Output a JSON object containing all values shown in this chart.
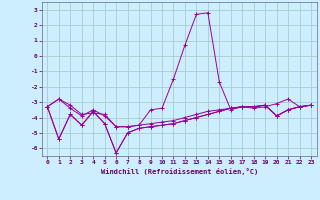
{
  "xlabel": "Windchill (Refroidissement éolien,°C)",
  "background_color": "#cceeff",
  "grid_color": "#aacccc",
  "line_color": "#990099",
  "xlim_min": -0.5,
  "xlim_max": 23.5,
  "ylim_min": -6.5,
  "ylim_max": 3.5,
  "yticks": [
    -6,
    -5,
    -4,
    -3,
    -2,
    -1,
    0,
    1,
    2,
    3
  ],
  "xticks": [
    0,
    1,
    2,
    3,
    4,
    5,
    6,
    7,
    8,
    9,
    10,
    11,
    12,
    13,
    14,
    15,
    16,
    17,
    18,
    19,
    20,
    21,
    22,
    23
  ],
  "x": [
    0,
    1,
    2,
    3,
    4,
    5,
    6,
    7,
    8,
    9,
    10,
    11,
    12,
    13,
    14,
    15,
    16,
    17,
    18,
    19,
    20,
    21,
    22,
    23
  ],
  "line1": [
    -3.3,
    -2.8,
    -3.2,
    -3.8,
    -3.7,
    -3.8,
    -4.6,
    -4.6,
    -4.5,
    -3.5,
    -3.4,
    -1.5,
    0.7,
    2.7,
    2.8,
    -1.7,
    -3.5,
    -3.3,
    -3.4,
    -3.3,
    -3.1,
    -2.8,
    -3.3,
    -3.2
  ],
  "line2": [
    -3.3,
    -2.8,
    -3.4,
    -3.9,
    -3.5,
    -3.9,
    -4.6,
    -4.6,
    -4.5,
    -4.4,
    -4.3,
    -4.2,
    -4.0,
    -3.8,
    -3.6,
    -3.5,
    -3.4,
    -3.3,
    -3.3,
    -3.2,
    -3.9,
    -3.5,
    -3.3,
    -3.2
  ],
  "line3": [
    -3.3,
    -5.4,
    -3.8,
    -4.5,
    -3.6,
    -4.4,
    -6.3,
    -5.0,
    -4.7,
    -4.6,
    -4.5,
    -4.4,
    -4.2,
    -4.0,
    -3.8,
    -3.6,
    -3.4,
    -3.3,
    -3.3,
    -3.2,
    -3.9,
    -3.5,
    -3.3,
    -3.2
  ],
  "line4": [
    -3.3,
    -5.4,
    -3.8,
    -4.5,
    -3.6,
    -4.4,
    -6.3,
    -5.0,
    -4.7,
    -4.6,
    -4.5,
    -4.4,
    -4.2,
    -4.0,
    -3.8,
    -3.6,
    -3.4,
    -3.3,
    -3.3,
    -3.2,
    -3.9,
    -3.5,
    -3.3,
    -3.2
  ]
}
